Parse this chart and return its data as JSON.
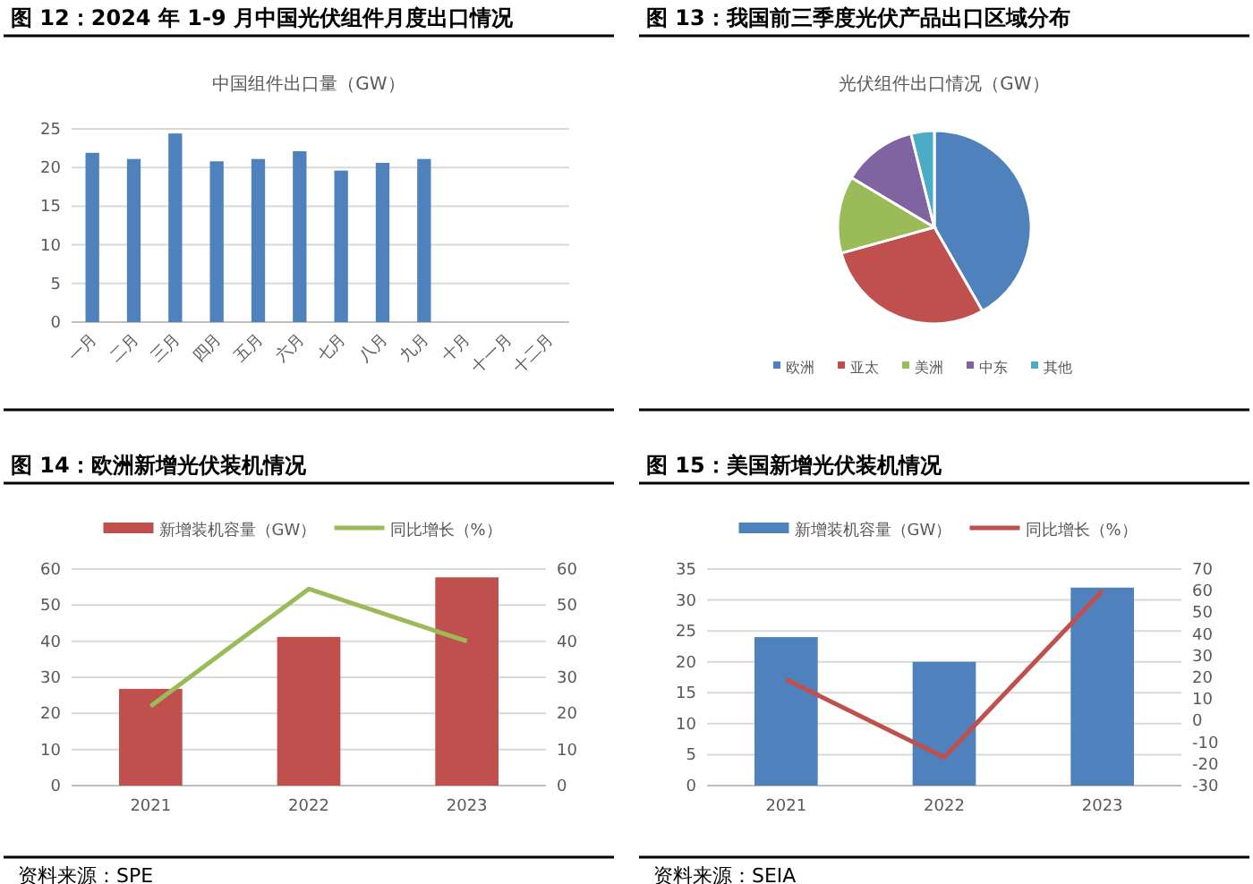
{
  "chart_data": [
    {
      "type": "bar",
      "title": "图 12：2024 年 1-9 月中国光伏组件月度出口情况",
      "subtitle": "中国组件出口量（GW）",
      "categories": [
        "一月",
        "二月",
        "三月",
        "四月",
        "五月",
        "六月",
        "七月",
        "八月",
        "九月",
        "十月",
        "十一月",
        "十二月"
      ],
      "values": [
        21.9,
        21.1,
        24.4,
        20.8,
        21.1,
        22.1,
        19.6,
        20.6,
        21.1,
        null,
        null,
        null
      ],
      "color": "#4f81bd",
      "ylim": [
        0,
        25
      ],
      "yticks": [
        0,
        5,
        10,
        15,
        20,
        25
      ],
      "grid": "y",
      "legend": false
    },
    {
      "type": "pie",
      "title": "图 13：我国前三季度光伏产品出口区域分布",
      "subtitle": "光伏组件出口情况（GW）",
      "categories": [
        "欧洲",
        "亚太",
        "美洲",
        "中东",
        "其他"
      ],
      "values": [
        41.7,
        29.0,
        12.9,
        12.5,
        3.9
      ],
      "colors": [
        "#4f81bd",
        "#c0504d",
        "#9bbb59",
        "#8064a2",
        "#4bacc6"
      ],
      "legend": "bottom"
    },
    {
      "type": "bar",
      "title": "图 14：欧洲新增光伏装机情况",
      "categories": [
        "2021",
        "2022",
        "2023"
      ],
      "series": [
        {
          "name": "新增装机容量（GW）",
          "color": "#c0504d",
          "values": [
            26.8,
            41.2,
            57.7
          ]
        },
        {
          "name": "同比增长（%）",
          "type": "line",
          "axis": "y2",
          "color": "#9bbb59",
          "values": [
            22,
            54.5,
            40
          ]
        }
      ],
      "ylim": [
        0,
        60
      ],
      "yticks": [
        0,
        10,
        20,
        30,
        40,
        50,
        60
      ],
      "y2lim": [
        0,
        60
      ],
      "y2ticks": [
        0,
        10,
        20,
        30,
        40,
        50,
        60
      ],
      "grid": "y",
      "legend": "top",
      "annotations": [
        "资料来源：SPE"
      ]
    },
    {
      "type": "bar",
      "title": "图 15：美国新增光伏装机情况",
      "categories": [
        "2021",
        "2022",
        "2023"
      ],
      "series": [
        {
          "name": "新增装机容量（GW）",
          "color": "#4f81bd",
          "values": [
            24,
            20,
            32
          ]
        },
        {
          "name": "同比增长（%）",
          "type": "line",
          "axis": "y2",
          "color": "#c0504d",
          "values": [
            19,
            -17,
            60
          ]
        }
      ],
      "ylim": [
        0,
        35
      ],
      "yticks": [
        0,
        5,
        10,
        15,
        20,
        25,
        30,
        35
      ],
      "y2lim": [
        -30,
        70
      ],
      "y2ticks": [
        -30,
        -20,
        -10,
        0,
        10,
        20,
        30,
        40,
        50,
        60,
        70
      ],
      "grid": "y",
      "legend": "top",
      "annotations": [
        "资料来源：SEIA"
      ]
    }
  ]
}
